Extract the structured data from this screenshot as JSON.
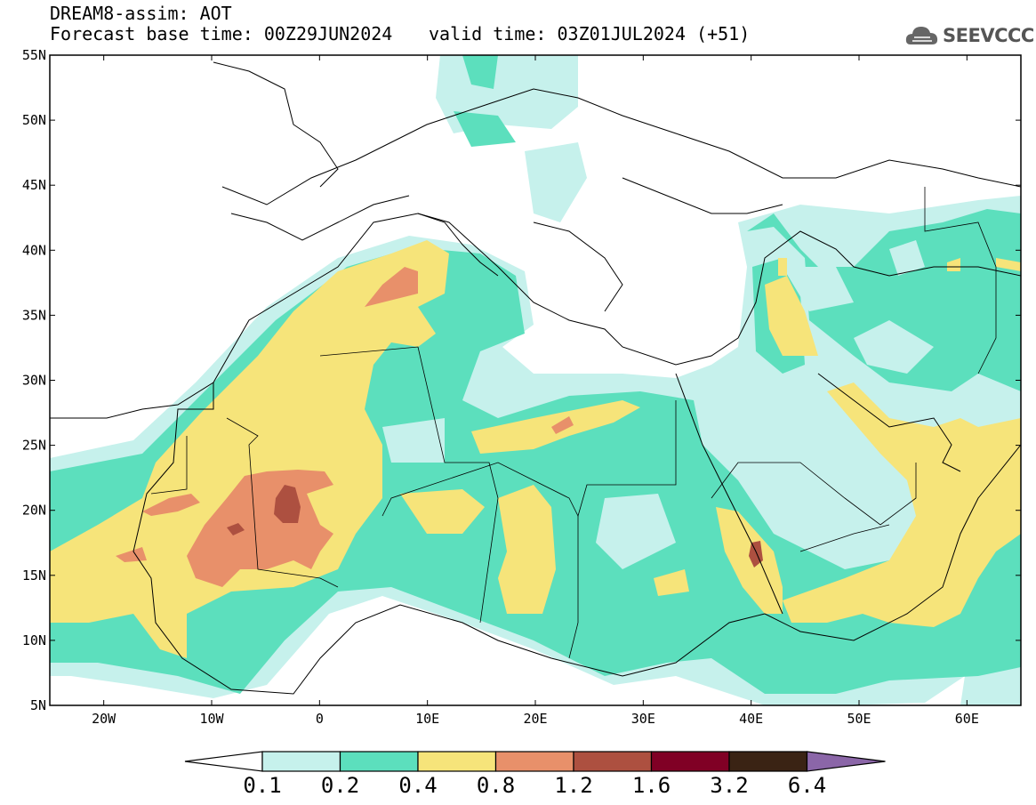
{
  "header": {
    "title": "DREAM8-assim: AOT",
    "base_time": "Forecast base time: 00Z29JUN2024",
    "valid_time": "valid time: 03Z01JUL2024 (+51)",
    "logo_text": "SEEVCCC"
  },
  "map": {
    "lat_ticks": [
      "55N",
      "50N",
      "45N",
      "40N",
      "35N",
      "30N",
      "25N",
      "20N",
      "15N",
      "10N",
      "5N"
    ],
    "lon_ticks": [
      "20W",
      "10W",
      "0",
      "10E",
      "20E",
      "30E",
      "40E",
      "50E",
      "60E"
    ],
    "lon_range": [
      -25,
      65
    ],
    "lat_range": [
      5,
      55
    ]
  },
  "colorbar": {
    "labels": [
      "0.1",
      "0.2",
      "0.4",
      "0.8",
      "1.2",
      "1.6",
      "3.2",
      "6.4"
    ],
    "colors": [
      "#c6f1ec",
      "#5cdfbd",
      "#f6e47a",
      "#e8906a",
      "#ad5040",
      "#800025",
      "#3a2314",
      "#8b66a8"
    ]
  },
  "chart_data": {
    "type": "heatmap",
    "variable": "AOT",
    "levels": [
      0.1,
      0.2,
      0.4,
      0.8,
      1.2,
      1.6,
      3.2,
      6.4
    ],
    "xlim": [
      -25,
      65
    ],
    "ylim": [
      5,
      55
    ]
  }
}
